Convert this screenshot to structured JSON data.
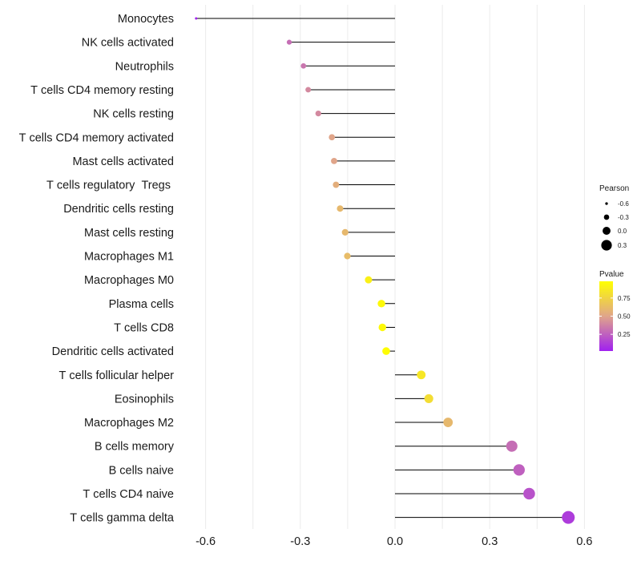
{
  "chart_data": {
    "type": "lollipop",
    "categories": [
      "Monocytes",
      "NK cells activated",
      "Neutrophils",
      "T cells CD4 memory resting",
      "NK cells resting",
      "T cells CD4 memory activated",
      "Mast cells activated",
      "T cells regulatory  Tregs ",
      "Dendritic cells resting",
      "Mast cells resting",
      "Macrophages M1",
      "Macrophages M0",
      "Plasma cells",
      "T cells CD8",
      "Dendritic cells activated",
      "T cells follicular helper",
      "Eosinophils",
      "Macrophages M2",
      "B cells memory",
      "B cells naive",
      "T cells CD4 naive",
      "T cells gamma delta"
    ],
    "pearson": [
      -0.63,
      -0.335,
      -0.29,
      -0.275,
      -0.243,
      -0.2,
      -0.193,
      -0.187,
      -0.174,
      -0.158,
      -0.151,
      -0.084,
      -0.043,
      -0.04,
      -0.028,
      0.083,
      0.107,
      0.168,
      0.37,
      0.393,
      0.425,
      0.549
    ],
    "pvalue": [
      0.03,
      0.3,
      0.33,
      0.4,
      0.4,
      0.5,
      0.5,
      0.55,
      0.6,
      0.6,
      0.62,
      0.9,
      0.95,
      0.95,
      0.97,
      0.85,
      0.8,
      0.6,
      0.3,
      0.25,
      0.2,
      0.12
    ],
    "xlim": [
      -0.7,
      0.7
    ],
    "x_ticks": [
      -0.6,
      -0.3,
      0.0,
      0.3,
      0.6
    ],
    "x_tick_labels": [
      "-0.6",
      "-0.3",
      "0.0",
      "0.3",
      "0.6"
    ],
    "xlabel": "",
    "ylabel": "",
    "legend_size": {
      "title": "Pearson",
      "values": [
        -0.6,
        -0.3,
        0.0,
        0.3
      ],
      "labels": [
        "-0.6",
        "-0.3",
        "0.0",
        "0.3"
      ]
    },
    "legend_color": {
      "title": "Pvalue",
      "ticks": [
        0.75,
        0.5,
        0.25
      ],
      "labels": [
        "0.75",
        "0.50",
        "0.25"
      ],
      "range": [
        0.02,
        0.98
      ],
      "color_low": "#a020f0",
      "color_mid": "#e0a58a",
      "color_high": "#ffff00"
    },
    "stem_color": "#000000",
    "grid_color": "#ebebeb",
    "legend_position": "right"
  }
}
